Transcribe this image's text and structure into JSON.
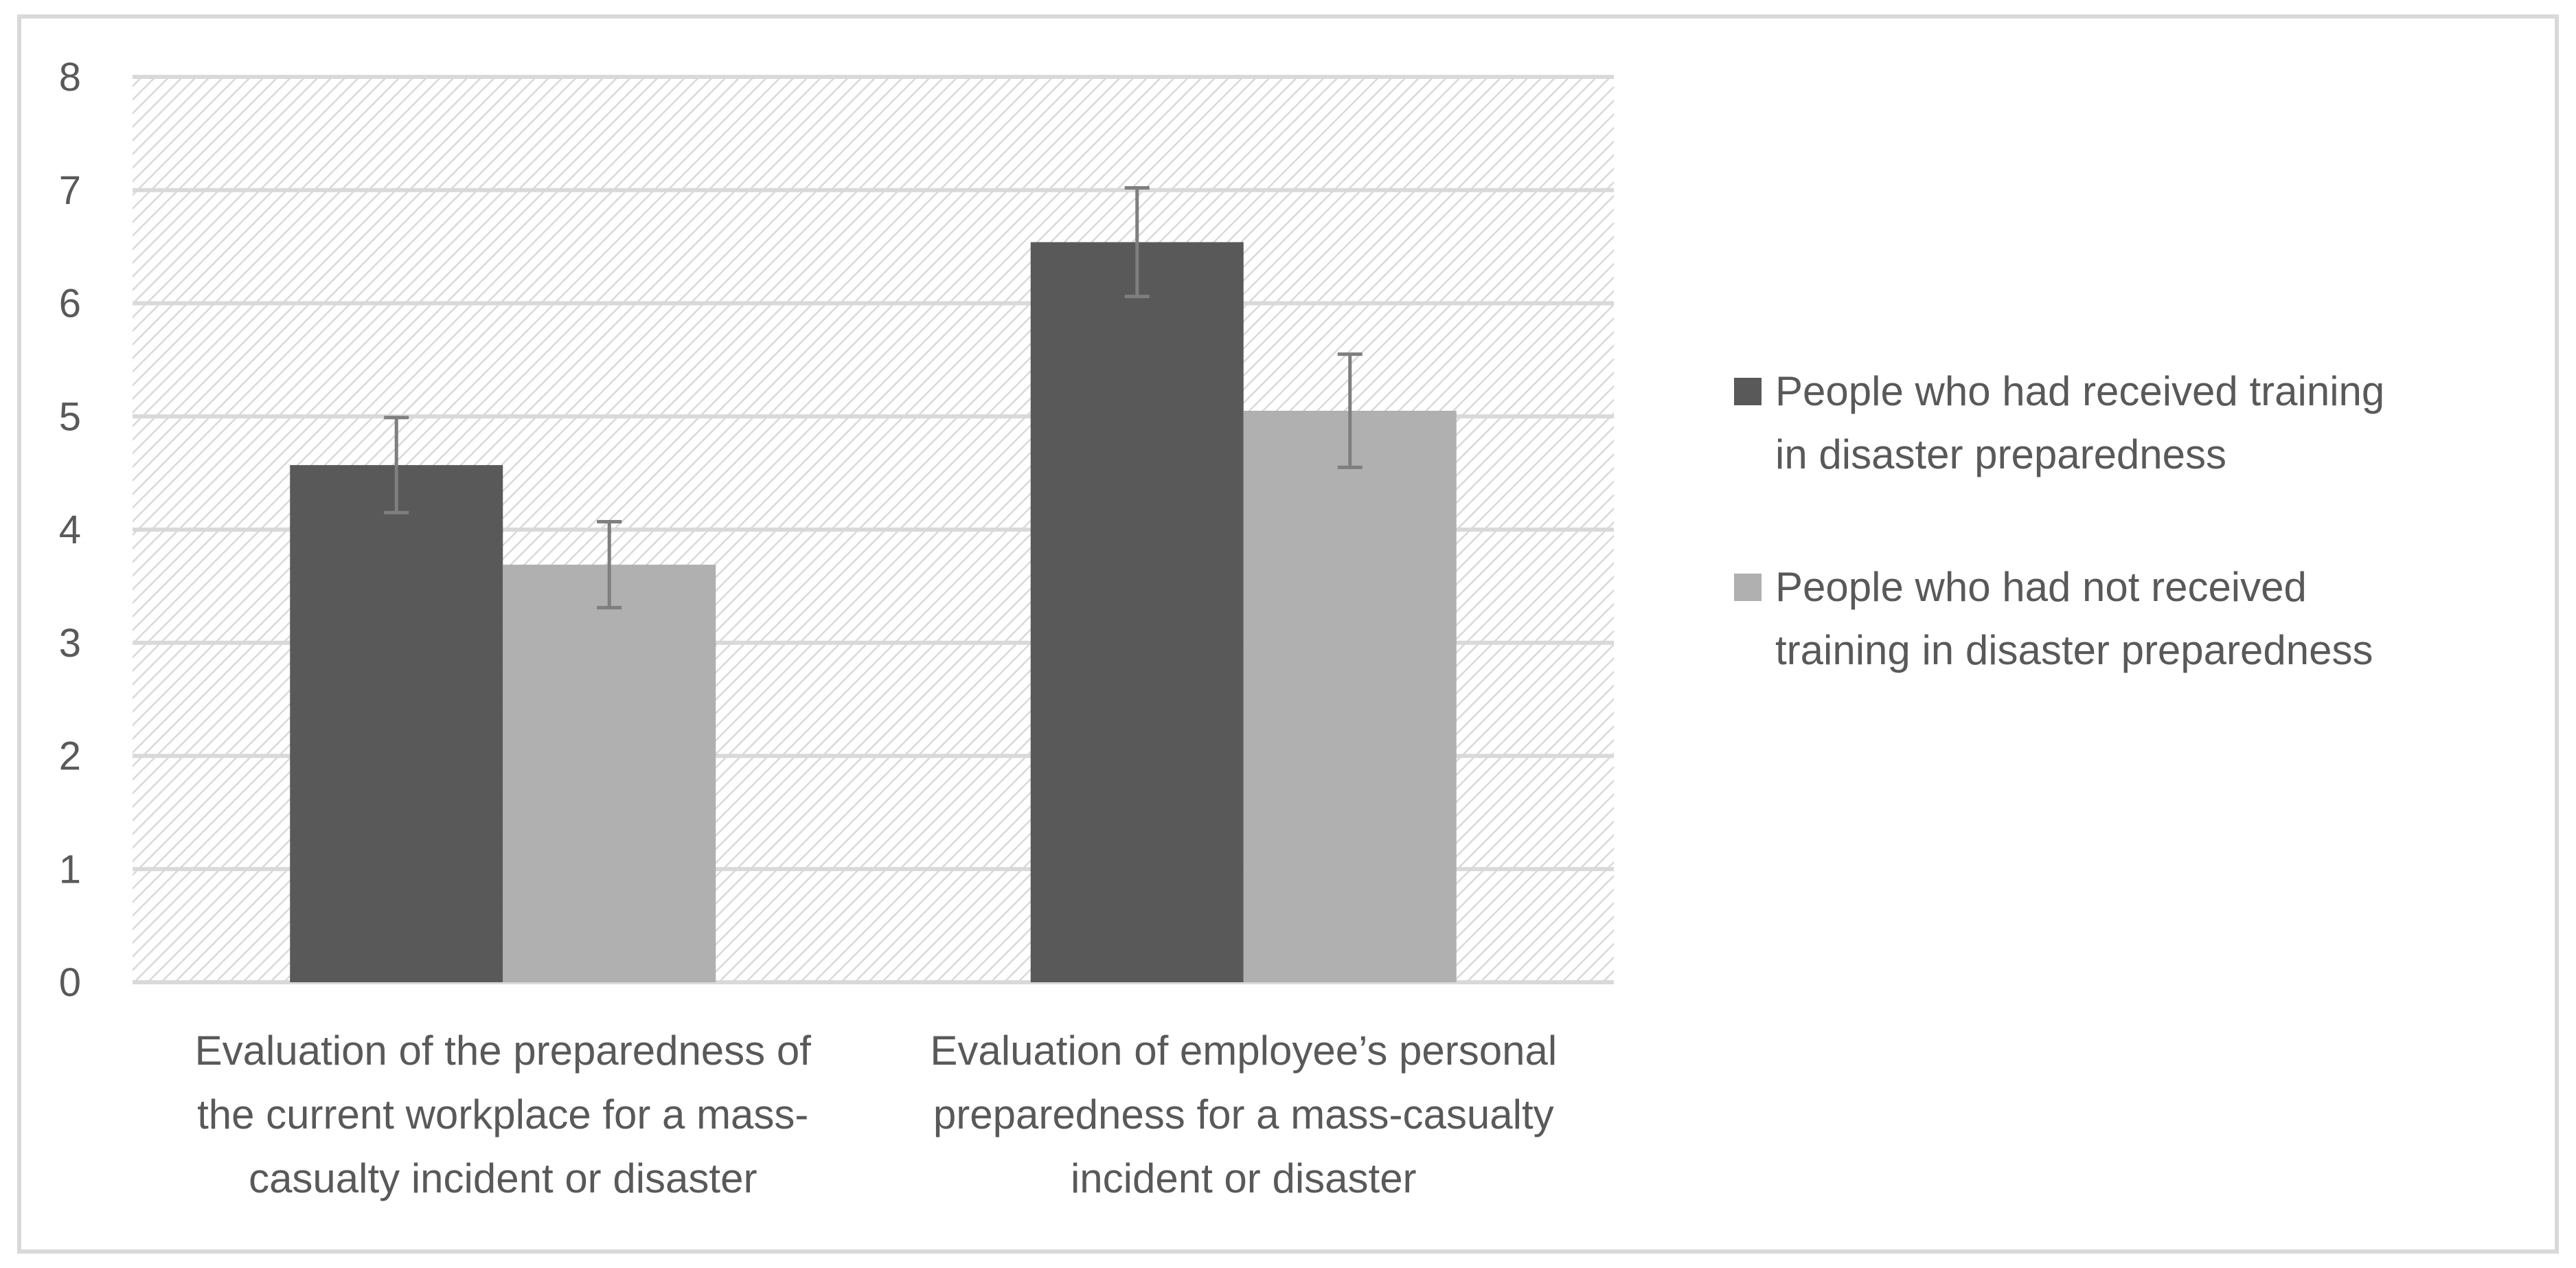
{
  "chart_data": {
    "type": "bar",
    "title": "",
    "xlabel": "",
    "ylabel": "",
    "ylim": [
      0,
      8
    ],
    "yticks": [
      0,
      1,
      2,
      3,
      4,
      5,
      6,
      7,
      8
    ],
    "grid": true,
    "legend_position": "right",
    "categories": [
      [
        "Evaluation of the preparedness of",
        "the current workplace for a mass-",
        "casualty incident or disaster"
      ],
      [
        "Evaluation of employee’s personal",
        "preparedness for a mass-casualty",
        "incident or disaster"
      ]
    ],
    "series": [
      {
        "name": [
          "People who had received training",
          "in disaster preparedness"
        ],
        "color": "#595959",
        "values": [
          4.57,
          6.54
        ],
        "error_low": [
          4.15,
          6.06
        ],
        "error_high": [
          4.99,
          7.02
        ]
      },
      {
        "name": [
          "People who had not received",
          "training in disaster preparedness"
        ],
        "color": "#b0b0b0",
        "values": [
          3.69,
          5.05
        ],
        "error_low": [
          3.31,
          4.55
        ],
        "error_high": [
          4.07,
          5.55
        ]
      }
    ],
    "colors": {
      "gridline": "#d9d9d9",
      "error_bar": "#7f7f7f",
      "text": "#595959",
      "plot_hatch": "#d9d9d9",
      "border": "#d9d9d9"
    }
  }
}
